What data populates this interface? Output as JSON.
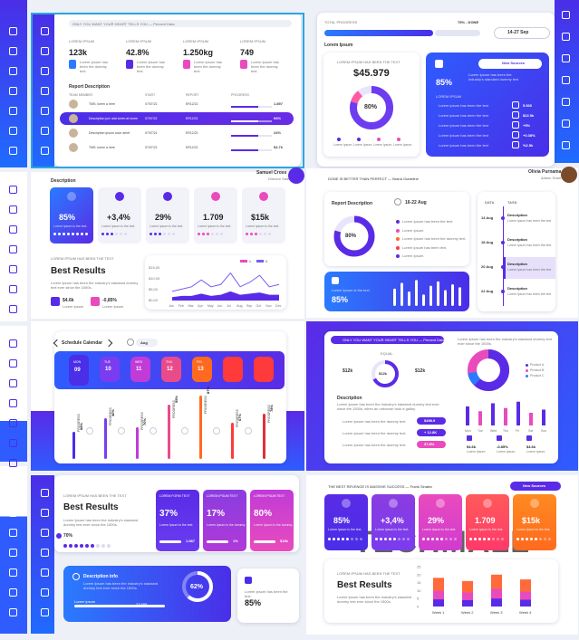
{
  "p1": {
    "banner": "ONLY YOU WANT YOUR HEART TELLS YOU — Percent Data",
    "stats": [
      {
        "label": "LOREM IPSUM",
        "value": "123k"
      },
      {
        "label": "LOREM IPSUM",
        "value": "42.8%"
      },
      {
        "label": "LOREM IPSUM",
        "value": "1.250kg"
      },
      {
        "label": "LOREM IPSUM",
        "value": "749"
      }
    ],
    "stat_desc": "Lorem Ipsum has been the dummy text.",
    "report_title": "Report Description",
    "cols": [
      "TEAM MEMBER",
      "START",
      "REPORT",
      "PROGRESS"
    ],
    "rows": [
      {
        "name": "TMS: lorem a here",
        "start": "07/07/21",
        "report": "ER12/21",
        "val": "1.897"
      },
      {
        "name": "Description jum alat lorem at lorem",
        "start": "07/07/21",
        "report": "ER12/21",
        "val": "94%"
      },
      {
        "name": "Description ipsum color amet",
        "start": "07/07/21",
        "report": "ER12/21",
        "val": "24%"
      },
      {
        "name": "TMS: lorem a here",
        "start": "07/07/21",
        "report": "ER12/21",
        "val": "$4.7k"
      }
    ]
  },
  "p2": {
    "total": "TOTAL PROGRESS",
    "done": "75% - DONE",
    "date": "14-27 Sep",
    "lorem": "Lorem Ipsum",
    "donut_cap": "LOREM IPSUM HAS BEEN THE TEXT",
    "money": "$45.979",
    "pct": "80%",
    "legend": [
      "Lorem Ipsum",
      "Lorem Ipsum",
      "Lorem Ipsum",
      "Lorem Ipsum"
    ],
    "new_sources": "New Sources",
    "blue_pct": "85%",
    "blue_desc": "Lorem Ipsum has been the industry's standard dummy text",
    "blue_head": "LOREM IPSUM",
    "list": [
      {
        "t": "Lorem ipsum has been the text",
        "v": "5.530"
      },
      {
        "t": "Lorem ipsum has been the text",
        "v": "$22.5k"
      },
      {
        "t": "Lorem ipsum has been the text",
        "v": "+5%"
      },
      {
        "t": "Lorem ipsum has been the text",
        "v": "+0.38%"
      },
      {
        "t": "Lorem ipsum has been the text",
        "v": "%2.5k"
      }
    ]
  },
  "p3": {
    "user": "Samuel Cross",
    "role": "Director Sales",
    "desc": "Description",
    "tiles": [
      {
        "v": "85%"
      },
      {
        "v": "+3,4%"
      },
      {
        "v": "29%"
      },
      {
        "v": "1.709"
      },
      {
        "v": "$15k"
      }
    ],
    "tile_desc": "Lorem Ipsum is the text.",
    "cap": "LOREM IPSUM HAS BEEN THE TEXT",
    "best": "Best Results",
    "best_desc": "Lorem Ipsum has been the industry's standard dummy text ever since the 1500s.",
    "s1": "$4.6k",
    "s2": "-0,85%",
    "s_cap": "Lorem Ipsum",
    "yt": [
      "$15,00",
      "$10,00",
      "$5,00",
      "$0,00"
    ],
    "months": [
      "Jan",
      "Feb",
      "Mar",
      "Apr",
      "May",
      "Jun",
      "Jul",
      "Aug",
      "Sep",
      "Oct",
      "Nov",
      "Dec"
    ],
    "legend": [
      "A",
      "B"
    ]
  },
  "p4": {
    "quote": "DONE IS BETTER THAN PERFECT — Brand Guideline",
    "user": "Olivia Purnama",
    "role": "Admin Team",
    "report": "Report Description",
    "date": "16-22 Aug",
    "pct": "80%",
    "items": [
      "Lorem Ipsum has been the text.",
      "Lorem Ipsum.",
      "Lorem Ipsum has been the dummy text.",
      "Lorem ipsum has been text.",
      "Lorem Ipsum."
    ],
    "small_pct": "85%",
    "small_desc": "Lorem Ipsum is the text.",
    "dh": "DATA",
    "th": "TASK",
    "tl": [
      {
        "d": "14 Aug",
        "t": "Description",
        "x": "Lorem Ipsum has been the text"
      },
      {
        "d": "18 Aug",
        "t": "Description",
        "x": "Lorem Ipsum has been the text"
      },
      {
        "d": "20 Aug",
        "t": "Description",
        "x": "Lorem Ipsum has been the text"
      },
      {
        "d": "22 Aug",
        "t": "Description",
        "x": "Lorem Ipsum has been the text"
      }
    ]
  },
  "p5": {
    "title": "Schedule Calendar",
    "month": "Aug",
    "days": [
      {
        "d": "MON",
        "n": "09"
      },
      {
        "d": "TUE",
        "n": "10"
      },
      {
        "d": "WED",
        "n": "11"
      },
      {
        "d": "THU",
        "n": "12"
      },
      {
        "d": "FRI",
        "n": "13"
      },
      {
        "d": "",
        "n": ""
      },
      {
        "d": "",
        "n": ""
      }
    ],
    "bar_label": "PROGRESS",
    "pcts": [
      "68%",
      "40%",
      "70%",
      "55%",
      "87%",
      "67%",
      "78%"
    ]
  },
  "p6": {
    "banner": "ONLY YOU WANT YOUR HEART TELLS YOU — Percent Data",
    "desc_top": "Lorem Ipsum has been the industry's standard dummy text ever since the 1500s.",
    "equal": "EQUAL",
    "v": [
      "$12k",
      "$12k",
      "$12k"
    ],
    "desc": "Description",
    "desc_text": "Lorem Ipsum has been the industry's standard dummy text ever since the 1500s, when an unknown took a galley.",
    "rows": [
      {
        "t": "Lorem Ipsum has been the dummy text.",
        "v": "$458.9"
      },
      {
        "t": "Lorem Ipsum has been the dummy text.",
        "v": "+ 12.8K"
      },
      {
        "t": "Lorem Ipsum has been the dummy text.",
        "v": "37.8%"
      }
    ],
    "legend": [
      "Product A",
      "Product B",
      "Product C"
    ],
    "days": [
      "Mon",
      "Tue",
      "Wed",
      "Thu",
      "Fri",
      "Sat",
      "Sun"
    ],
    "s": [
      {
        "v": "$4.6k",
        "c": "Lorem Ipsum"
      },
      {
        "v": "-0.85%",
        "c": "Lorem Ipsum"
      },
      {
        "v": "$4.6k",
        "c": "Lorem Ipsum"
      }
    ]
  },
  "p7": {
    "cap": "LOREM IPSUM HAS BEEN THE TEXT",
    "best": "Best Results",
    "best_desc": "Lorem Ipsum has been the industry's standard dummy text ever since the 1500s.",
    "pct": "70%",
    "cards": [
      {
        "h": "LOREM FORM TEXT",
        "v": "37%",
        "d": "Lorem Ipsum is the text.",
        "n": "1.087"
      },
      {
        "h": "LOREM IPSUM TEXT",
        "v": "17%",
        "d": "Lorem Ipsum is the dummy.",
        "n": "1%"
      },
      {
        "h": "LOREM IPSUM TEXT",
        "v": "80%",
        "d": "Lorem Ipsum is the dummy.",
        "n": "$15k"
      }
    ],
    "info": "Description info",
    "info_desc": "Lorem Ipsum has been the industry's standard dummy text ever since the 1500s.",
    "info_left": "Lorem ipsum",
    "info_right": "23.589",
    "ring": "62%",
    "right_desc": "Lorem Ipsum has been the text.",
    "right_pct": "85%"
  },
  "p8": {
    "banner": "THE BEST REVENGE IS MASSIVE SUCCESS — Frank Sinatra",
    "new_sources": "New Sources",
    "tiles": [
      {
        "v": "85%"
      },
      {
        "v": "+3,4%"
      },
      {
        "v": "29%"
      },
      {
        "v": "1.709"
      },
      {
        "v": "$15k"
      }
    ],
    "tile_desc": "Lorem Ipsum is the text.",
    "cap": "LOREM IPSUM HAS BEEN THE TEXT",
    "best": "Best Results",
    "best_desc": "Lorem Ipsum has been the industry's standard dummy text ever since the 1500s.",
    "weeks": [
      "Week 1",
      "Week 2",
      "Week 3",
      "Week 4"
    ],
    "yt": [
      "25",
      "20",
      "15",
      "10",
      "5",
      "0"
    ]
  },
  "watermark": "TECHMALL",
  "chart_data": [
    {
      "type": "line",
      "categories": [
        "Jan",
        "Feb",
        "Mar",
        "Apr",
        "May",
        "Jun",
        "Jul",
        "Aug",
        "Sep",
        "Oct",
        "Nov",
        "Dec"
      ],
      "series": [
        {
          "name": "A",
          "values": [
            4,
            5,
            6,
            9,
            6,
            7,
            12,
            6,
            8,
            11,
            6,
            7
          ]
        },
        {
          "name": "B",
          "values": [
            1.5,
            2,
            2,
            3,
            2,
            2.5,
            4,
            2.5,
            3,
            3.5,
            2.5,
            2.5
          ]
        }
      ],
      "ylim": [
        0,
        15
      ]
    },
    {
      "type": "bar",
      "categories": [
        "Mon",
        "Tue",
        "Wed",
        "Thu",
        "Fri",
        "Sat",
        "Sun"
      ],
      "values": [
        60,
        45,
        70,
        55,
        75,
        40,
        50
      ]
    },
    {
      "type": "bar",
      "categories": [
        "Week 1",
        "Week 2",
        "Week 3",
        "Week 4"
      ],
      "values": [
        18,
        16,
        20,
        17
      ],
      "ylim": [
        0,
        25
      ]
    },
    {
      "type": "bar",
      "categories": [
        "1",
        "2",
        "3",
        "4",
        "5",
        "6",
        "7",
        "8",
        "9",
        "10"
      ],
      "values": [
        60,
        80,
        50,
        90,
        40,
        70,
        85,
        55,
        75,
        65
      ]
    }
  ],
  "colors": {
    "blue": "#2a7bff",
    "purple": "#5a2be6",
    "pink": "#e94bbd",
    "orange": "#ff6a20",
    "red": "#ff3a3a"
  }
}
